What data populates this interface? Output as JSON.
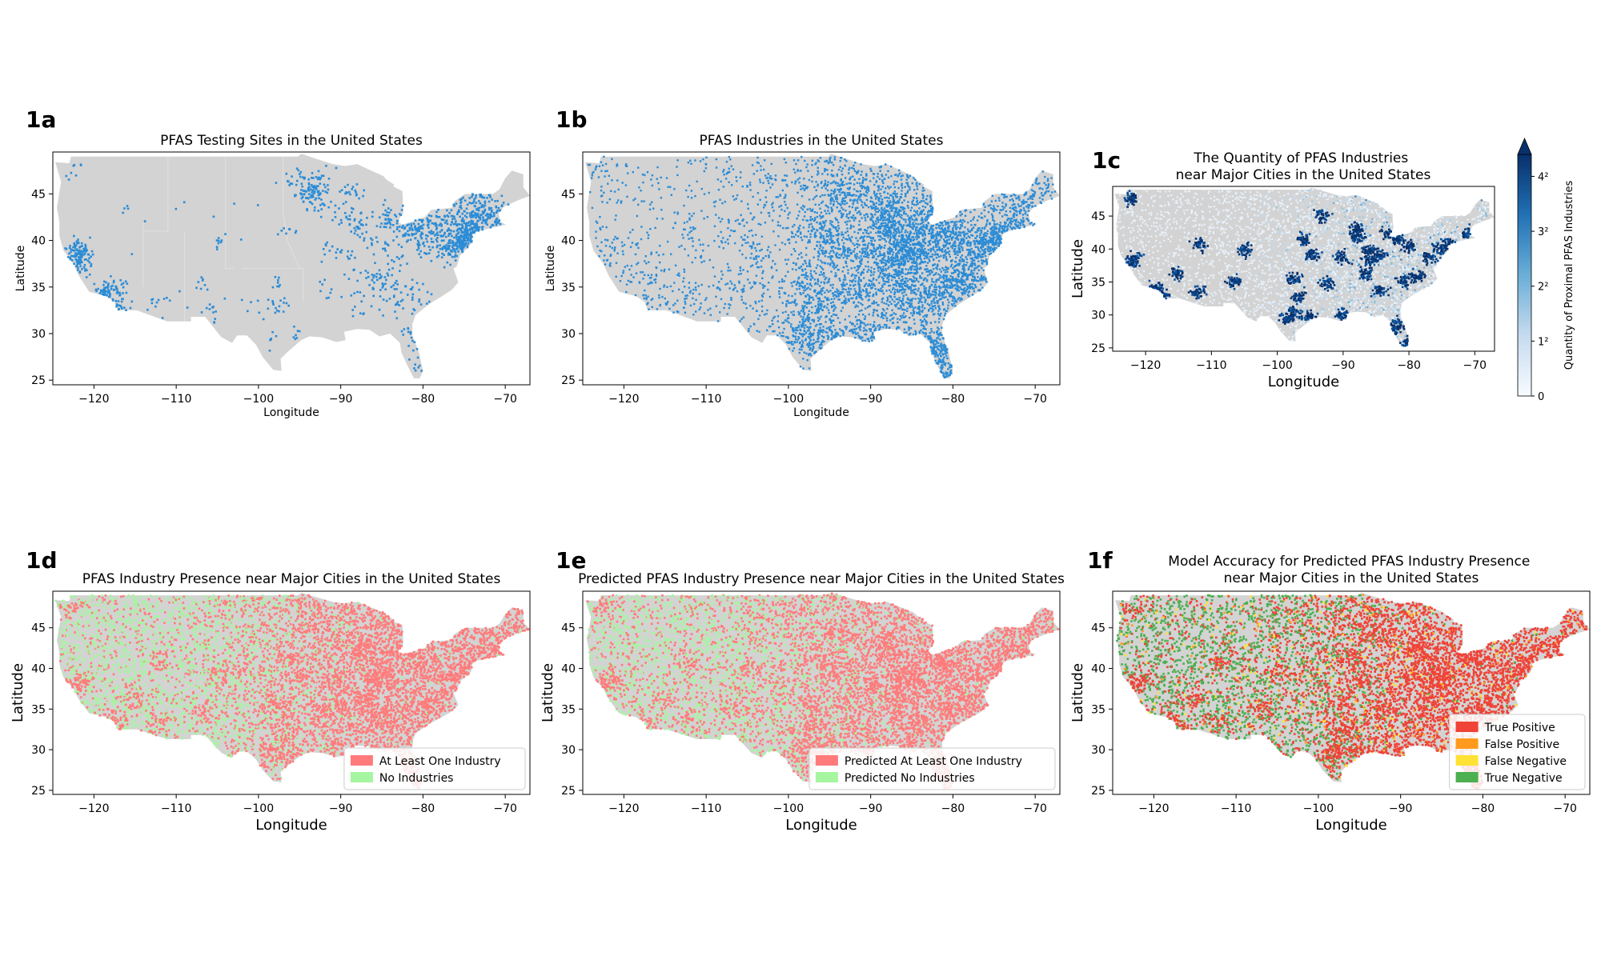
{
  "colors": {
    "land": "#d3d3d3",
    "blue": "#2b8cd6",
    "red": "#ff7b7b",
    "green": "#a6f5a0",
    "tp": "#f04237",
    "fp": "#ff9a1e",
    "fn": "#ffe234",
    "tn": "#4caf50",
    "dark": "#08306b"
  },
  "chart_data": [
    {
      "id": "1a",
      "type": "scatter",
      "panel_label": "1a",
      "title": "PFAS Testing Sites in the United States",
      "xlabel": "Longitude",
      "ylabel": "Latitude",
      "xlim": [
        -125,
        -67
      ],
      "ylim": [
        24.5,
        49.5
      ],
      "xticks": [
        -120,
        -110,
        -100,
        -90,
        -80,
        -70
      ],
      "yticks": [
        25,
        30,
        35,
        40,
        45
      ],
      "series": [
        {
          "color": "blue",
          "clusters": [
            [
              -118.5,
              34.2,
              1.2,
              0.9,
              140
            ],
            [
              -122.0,
              37.8,
              0.8,
              0.9,
              110
            ],
            [
              -121.5,
              38.8,
              0.6,
              0.7,
              40
            ],
            [
              -117.1,
              32.9,
              0.5,
              0.4,
              30
            ],
            [
              -74.3,
              40.5,
              1.0,
              1.0,
              160
            ],
            [
              -76.5,
              42.2,
              2.8,
              1.6,
              220
            ],
            [
              -71.5,
              42.2,
              1.2,
              1.1,
              110
            ],
            [
              -73.5,
              44.0,
              1.0,
              1.0,
              60
            ],
            [
              -75.2,
              39.6,
              0.8,
              0.8,
              60
            ],
            [
              -77.0,
              38.9,
              0.9,
              0.8,
              50
            ],
            [
              -80.0,
              40.4,
              1.5,
              1.2,
              60
            ],
            [
              -81.5,
              41.3,
              1.2,
              0.6,
              45
            ],
            [
              -83.5,
              42.3,
              1.2,
              0.8,
              40
            ],
            [
              -88.0,
              41.8,
              1.0,
              0.8,
              25
            ],
            [
              -93.3,
              45.0,
              1.0,
              0.8,
              80
            ],
            [
              -94.0,
              46.6,
              1.6,
              0.9,
              40
            ],
            [
              -89.4,
              43.1,
              1.2,
              1.0,
              25
            ],
            [
              -84.0,
              35.8,
              2.0,
              1.3,
              50
            ],
            [
              -86.5,
              36.1,
              1.3,
              0.8,
              25
            ],
            [
              -82.0,
              33.6,
              1.5,
              1.2,
              35
            ],
            [
              -80.5,
              27.0,
              0.7,
              1.7,
              40
            ],
            [
              -81.5,
              30.3,
              0.6,
              0.5,
              12
            ],
            [
              -97.5,
              32.8,
              0.7,
              0.6,
              12
            ],
            [
              -95.4,
              29.8,
              0.5,
              0.4,
              8
            ],
            [
              -90.5,
              38.6,
              1.2,
              0.8,
              20
            ],
            [
              -92.0,
              34.7,
              0.6,
              0.5,
              8
            ],
            [
              -104.8,
              39.7,
              0.4,
              0.4,
              8
            ],
            [
              -112.0,
              33.5,
              0.5,
              0.4,
              10
            ],
            [
              -106.6,
              35.1,
              0.5,
              0.5,
              8
            ],
            [
              -105.5,
              32.2,
              0.8,
              0.6,
              8
            ],
            [
              -100.0,
              33.2,
              1.5,
              1.0,
              10
            ],
            [
              -97.5,
              35.5,
              0.7,
              0.5,
              8
            ],
            [
              -122.4,
              47.5,
              0.4,
              0.4,
              8
            ],
            [
              -116.2,
              43.6,
              0.4,
              0.3,
              4
            ],
            [
              -96.7,
              40.8,
              0.8,
              0.6,
              8
            ],
            [
              -86.2,
              39.8,
              0.7,
              0.5,
              8
            ],
            [
              -85.5,
              40.7,
              1.5,
              1.0,
              12
            ],
            [
              -84.5,
              39.1,
              0.6,
              0.5,
              8
            ],
            [
              -87.7,
              33.0,
              1.5,
              1.3,
              12
            ],
            [
              -110.0,
              40.0,
              3.0,
              3.0,
              6
            ],
            [
              -103.0,
              42.0,
              3.0,
              3.0,
              5
            ],
            [
              -107.8,
              31.8,
              1.5,
              1.0,
              6
            ],
            [
              -98.5,
              29.5,
              0.6,
              0.5,
              6
            ],
            [
              -88.5,
              45.5,
              1.0,
              0.8,
              12
            ],
            [
              -80.0,
              42.0,
              1.0,
              0.5,
              10
            ]
          ]
        }
      ]
    },
    {
      "id": "1b",
      "type": "scatter",
      "panel_label": "1b",
      "title": "PFAS Industries in the United States",
      "xlabel": "Longitude",
      "ylabel": "Latitude",
      "xlim": [
        -125,
        -67
      ],
      "ylim": [
        24.5,
        49.5
      ],
      "xticks": [
        -120,
        -110,
        -100,
        -90,
        -80,
        -70
      ],
      "yticks": [
        25,
        30,
        35,
        40,
        45
      ],
      "series": [
        {
          "color": "blue",
          "density": 0.85
        }
      ]
    },
    {
      "id": "1c",
      "type": "scatter",
      "panel_label": "1c",
      "title": "The Quantity of PFAS Industries\nnear Major Cities in the United States",
      "xlabel": "Longitude",
      "ylabel": "Latitude",
      "xlim": [
        -125,
        -67
      ],
      "ylim": [
        24.5,
        49.5
      ],
      "xticks": [
        -120,
        -110,
        -100,
        -90,
        -80,
        -70
      ],
      "yticks": [
        25,
        30,
        35,
        40,
        45
      ],
      "colorbar": {
        "label": "Quantity of Proximal PFAS Industries",
        "ticks": [
          "0",
          "1²",
          "2²",
          "3²",
          "4²"
        ],
        "extend": "max"
      }
    },
    {
      "id": "1d",
      "type": "scatter",
      "panel_label": "1d",
      "title": "PFAS Industry Presence near Major Cities in the United States",
      "xlabel": "Longitude",
      "ylabel": "Latitude",
      "xlim": [
        -125,
        -67
      ],
      "ylim": [
        24.5,
        49.5
      ],
      "xticks": [
        -120,
        -110,
        -100,
        -90,
        -80,
        -70
      ],
      "yticks": [
        25,
        30,
        35,
        40,
        45
      ],
      "legend": {
        "position": "lower right",
        "entries": [
          {
            "label": "At Least One Industry",
            "color": "red"
          },
          {
            "label": "No Industries",
            "color": "green"
          }
        ]
      }
    },
    {
      "id": "1e",
      "type": "scatter",
      "panel_label": "1e",
      "title": "Predicted PFAS Industry Presence near Major Cities in the United States",
      "xlabel": "Longitude",
      "ylabel": "Latitude",
      "xlim": [
        -125,
        -67
      ],
      "ylim": [
        24.5,
        49.5
      ],
      "xticks": [
        -120,
        -110,
        -100,
        -90,
        -80,
        -70
      ],
      "yticks": [
        25,
        30,
        35,
        40,
        45
      ],
      "legend": {
        "position": "lower right",
        "entries": [
          {
            "label": "Predicted At Least One Industry",
            "color": "red"
          },
          {
            "label": "Predicted No Industries",
            "color": "green"
          }
        ]
      }
    },
    {
      "id": "1f",
      "type": "scatter",
      "panel_label": "1f",
      "title": "Model Accuracy for Predicted PFAS Industry Presence\nnear Major Cities in the United States",
      "xlabel": "Longitude",
      "ylabel": "Latitude",
      "xlim": [
        -125,
        -67
      ],
      "ylim": [
        24.5,
        49.5
      ],
      "xticks": [
        -120,
        -110,
        -100,
        -90,
        -80,
        -70
      ],
      "yticks": [
        25,
        30,
        35,
        40,
        45
      ],
      "legend": {
        "position": "lower right",
        "entries": [
          {
            "label": "True Positive",
            "color": "tp"
          },
          {
            "label": "False Positive",
            "color": "fp"
          },
          {
            "label": "False Negative",
            "color": "fn"
          },
          {
            "label": "True Negative",
            "color": "tn"
          }
        ]
      }
    }
  ],
  "us_outline": [
    [
      -124.7,
      48.4
    ],
    [
      -123.0,
      48.3
    ],
    [
      -122.8,
      49.0
    ],
    [
      -95.2,
      49.0
    ],
    [
      -94.8,
      49.3
    ],
    [
      -91.0,
      48.2
    ],
    [
      -89.5,
      48.0
    ],
    [
      -88.0,
      48.2
    ],
    [
      -84.8,
      46.9
    ],
    [
      -84.4,
      46.5
    ],
    [
      -83.5,
      46.0
    ],
    [
      -83.6,
      45.8
    ],
    [
      -82.5,
      45.3
    ],
    [
      -82.4,
      43.0
    ],
    [
      -83.1,
      42.0
    ],
    [
      -82.5,
      41.7
    ],
    [
      -79.8,
      42.5
    ],
    [
      -79.0,
      43.3
    ],
    [
      -76.5,
      43.5
    ],
    [
      -76.2,
      44.2
    ],
    [
      -74.9,
      45.0
    ],
    [
      -71.5,
      45.0
    ],
    [
      -70.7,
      45.5
    ],
    [
      -70.0,
      46.7
    ],
    [
      -69.2,
      47.5
    ],
    [
      -67.8,
      47.1
    ],
    [
      -67.8,
      45.7
    ],
    [
      -67.0,
      44.8
    ],
    [
      -68.5,
      44.3
    ],
    [
      -70.2,
      43.6
    ],
    [
      -70.8,
      42.9
    ],
    [
      -70.6,
      42.0
    ],
    [
      -69.9,
      41.7
    ],
    [
      -71.4,
      41.4
    ],
    [
      -73.7,
      40.9
    ],
    [
      -74.0,
      40.5
    ],
    [
      -74.1,
      39.7
    ],
    [
      -74.9,
      38.9
    ],
    [
      -75.5,
      38.4
    ],
    [
      -75.9,
      37.2
    ],
    [
      -76.3,
      37.0
    ],
    [
      -75.7,
      35.5
    ],
    [
      -76.5,
      34.7
    ],
    [
      -77.9,
      33.9
    ],
    [
      -79.2,
      33.2
    ],
    [
      -80.9,
      32.0
    ],
    [
      -81.3,
      31.0
    ],
    [
      -81.3,
      29.8
    ],
    [
      -80.5,
      28.0
    ],
    [
      -80.0,
      26.0
    ],
    [
      -80.4,
      25.2
    ],
    [
      -81.1,
      25.2
    ],
    [
      -81.8,
      26.4
    ],
    [
      -82.6,
      27.9
    ],
    [
      -82.8,
      29.0
    ],
    [
      -84.0,
      30.0
    ],
    [
      -85.3,
      29.7
    ],
    [
      -86.5,
      30.4
    ],
    [
      -88.0,
      30.5
    ],
    [
      -89.6,
      30.2
    ],
    [
      -89.4,
      29.3
    ],
    [
      -90.5,
      29.1
    ],
    [
      -92.3,
      29.6
    ],
    [
      -93.8,
      29.7
    ],
    [
      -94.8,
      29.3
    ],
    [
      -96.5,
      28.0
    ],
    [
      -97.3,
      27.3
    ],
    [
      -97.2,
      26.0
    ],
    [
      -98.2,
      26.1
    ],
    [
      -99.5,
      27.5
    ],
    [
      -100.3,
      28.8
    ],
    [
      -101.4,
      29.8
    ],
    [
      -102.6,
      29.8
    ],
    [
      -103.2,
      29.0
    ],
    [
      -104.5,
      29.6
    ],
    [
      -106.5,
      31.8
    ],
    [
      -108.2,
      31.8
    ],
    [
      -108.2,
      31.3
    ],
    [
      -111.1,
      31.3
    ],
    [
      -114.8,
      32.5
    ],
    [
      -117.1,
      32.5
    ],
    [
      -117.5,
      33.4
    ],
    [
      -118.5,
      34.0
    ],
    [
      -120.6,
      34.5
    ],
    [
      -121.9,
      36.3
    ],
    [
      -122.5,
      37.5
    ],
    [
      -123.7,
      38.9
    ],
    [
      -124.2,
      40.5
    ],
    [
      -124.2,
      42.0
    ],
    [
      -124.5,
      43.5
    ],
    [
      -124.0,
      46.3
    ],
    [
      -124.7,
      48.4
    ]
  ]
}
